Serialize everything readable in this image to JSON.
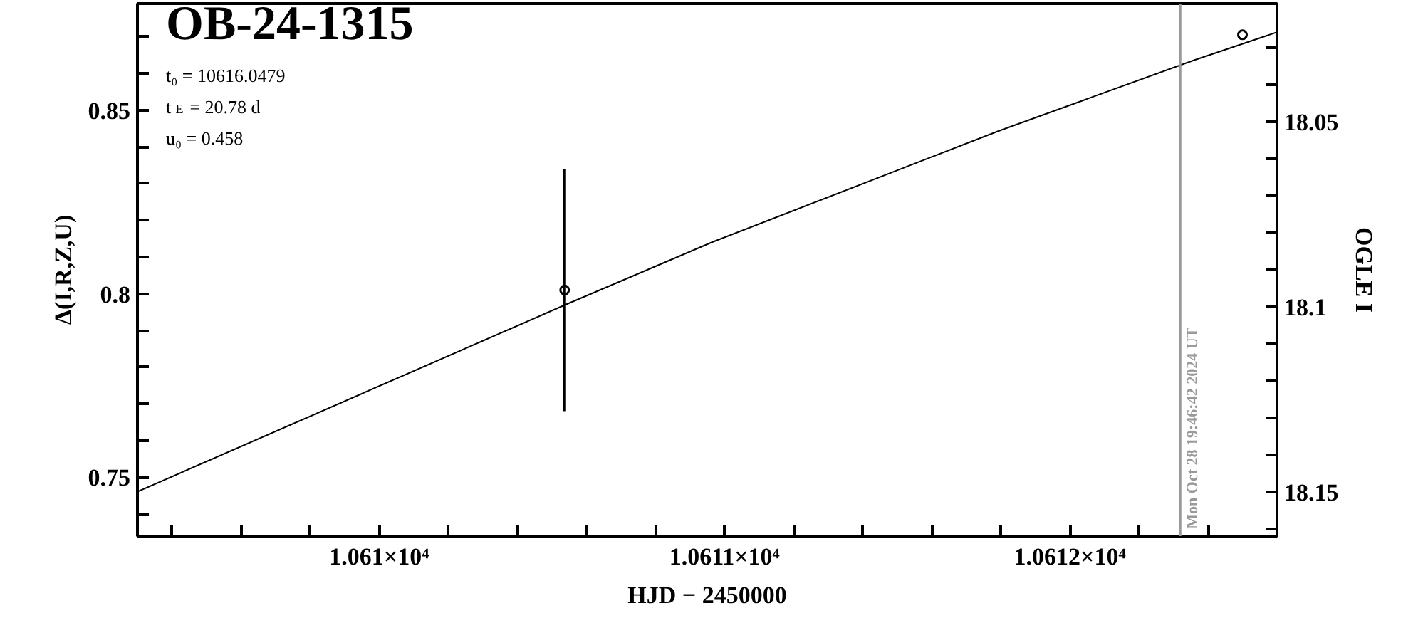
{
  "chart_data": {
    "type": "scatter",
    "title": "OB-24-1315",
    "xlabel": "HJD − 2450000",
    "ylabel": "Δ(I,R,Z,U)",
    "y2label": "OGLE I",
    "annotations": [
      "t₀ = 10616.0479",
      "t$_{E}$ = 20.78 d",
      "u₀ = 0.458",
      {
        "text": "Mon Oct 28 19:46:42 2024 UT",
        "x": 10612.32,
        "y": 0.736
      }
    ],
    "xlim": [
      10609.3,
      10612.6
    ],
    "ylim": [
      0.734,
      0.879
    ],
    "y2lim": [
      18.162,
      18.018
    ],
    "xticks": [
      {
        "value": 10609.4,
        "label": null
      },
      {
        "value": 10609.6,
        "label": null
      },
      {
        "value": 10609.8,
        "label": null
      },
      {
        "value": 10610,
        "label": "1.061×10⁴"
      },
      {
        "value": 10610.2,
        "label": null
      },
      {
        "value": 10610.4,
        "label": null
      },
      {
        "value": 10610.6,
        "label": null
      },
      {
        "value": 10610.8,
        "label": null
      },
      {
        "value": 10611,
        "label": "1.0611×10⁴"
      },
      {
        "value": 10611.2,
        "label": null
      },
      {
        "value": 10611.4,
        "label": null
      },
      {
        "value": 10611.6,
        "label": null
      },
      {
        "value": 10611.8,
        "label": null
      },
      {
        "value": 10612,
        "label": "1.0612×10⁴"
      },
      {
        "value": 10612.2,
        "label": null
      },
      {
        "value": 10612.4,
        "label": null
      }
    ],
    "yticks": [
      {
        "value": 0.74,
        "label": null
      },
      0.75,
      {
        "value": 0.76,
        "label": null
      },
      {
        "value": 0.77,
        "label": null
      },
      {
        "value": 0.78,
        "label": null
      },
      {
        "value": 0.79,
        "label": null
      },
      0.8,
      {
        "value": 0.81,
        "label": null
      },
      {
        "value": 0.82,
        "label": null
      },
      {
        "value": 0.83,
        "label": null
      },
      {
        "value": 0.84,
        "label": null
      },
      0.85,
      {
        "value": 0.86,
        "label": null
      },
      {
        "value": 0.87,
        "label": null
      }
    ],
    "y2ticks": [
      {
        "value": 18.03,
        "label": null
      },
      {
        "value": 18.04,
        "label": null
      },
      18.05,
      {
        "value": 18.06,
        "label": null
      },
      {
        "value": 18.07,
        "label": null
      },
      {
        "value": 18.08,
        "label": null
      },
      {
        "value": 18.09,
        "label": null
      },
      18.1,
      {
        "value": 18.11,
        "label": null
      },
      {
        "value": 18.12,
        "label": null
      },
      {
        "value": 18.13,
        "label": null
      },
      {
        "value": 18.14,
        "label": null
      },
      18.15,
      {
        "value": 18.16,
        "label": null
      }
    ],
    "ref_lines": [
      {
        "axis": "x",
        "value": 10612.32,
        "color": "#999999"
      }
    ],
    "series": [
      {
        "type": "line",
        "color": "#000000",
        "x": [
          10609.3,
          10610.537,
          10610.966,
          10611.791,
          10612.357,
          10612.6
        ],
        "values": [
          0.7461,
          0.7969,
          0.8141,
          0.8442,
          0.8635,
          0.8712
        ]
      },
      {
        "color": "#000000",
        "marker": "circle",
        "x": [
          10610.537,
          10612.5
        ],
        "values": [
          0.801,
          0.8705
        ],
        "errors": [
          0.033,
          null
        ]
      }
    ],
    "grid": false
  }
}
